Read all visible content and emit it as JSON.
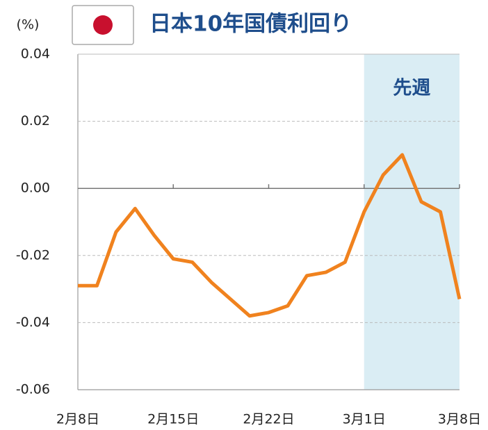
{
  "chart_data": {
    "type": "line",
    "title": "日本10年国債利回り",
    "y_unit": "(%)",
    "categories": [
      "2月8日",
      null,
      null,
      null,
      null,
      "2月15日",
      null,
      null,
      null,
      null,
      "2月22日",
      null,
      null,
      null,
      null,
      "3月1日",
      null,
      null,
      null,
      null,
      "3月8日"
    ],
    "series": [
      {
        "name": "日本10年国債利回り",
        "color": "#f0821e",
        "values": [
          -0.029,
          -0.029,
          -0.013,
          -0.006,
          -0.014,
          -0.021,
          -0.022,
          -0.028,
          -0.033,
          -0.038,
          -0.037,
          -0.035,
          -0.026,
          -0.025,
          -0.022,
          -0.007,
          0.004,
          0.01,
          -0.004,
          -0.007,
          -0.033
        ]
      }
    ],
    "ylim": [
      -0.06,
      0.04
    ],
    "yticks": [
      -0.06,
      -0.04,
      -0.02,
      {
        "value": 0,
        "label": "0.00"
      },
      0.02,
      0.04
    ],
    "grid": true,
    "highlight": {
      "label": "先週",
      "start": "3月1日",
      "end": "3月8日",
      "color": "#daedf4"
    }
  }
}
